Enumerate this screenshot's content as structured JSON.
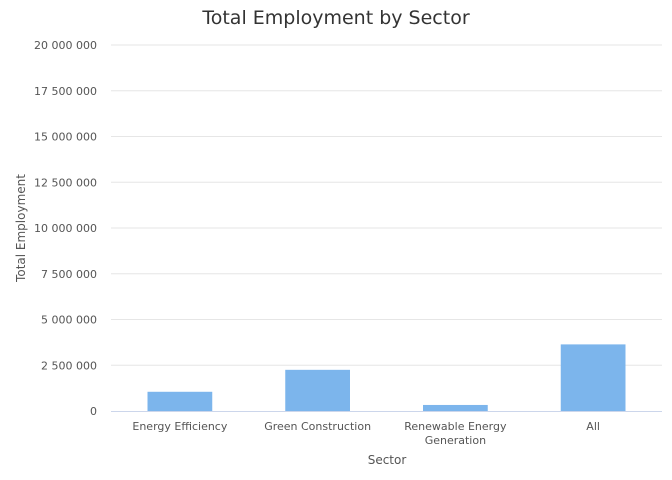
{
  "chart_data": {
    "type": "bar",
    "title": "Total Employment by Sector",
    "xlabel": "Sector",
    "ylabel": "Total Employment",
    "categories": [
      [
        "Energy Efficiency"
      ],
      [
        "Green Construction"
      ],
      [
        "Renewable Energy",
        "Generation"
      ],
      [
        "All"
      ]
    ],
    "values": [
      1050000,
      2250000,
      330000,
      3640000
    ],
    "ylim": [
      0,
      20000000
    ],
    "yticks": [
      0,
      2500000,
      5000000,
      7500000,
      10000000,
      12500000,
      15000000,
      17500000,
      20000000
    ],
    "ytick_labels": [
      "0",
      "2 500 000",
      "5 000 000",
      "7 500 000",
      "10 000 000",
      "12 500 000",
      "15 000 000",
      "17 500 000",
      "20 000 000"
    ],
    "grid": true,
    "legend": "none",
    "colors": {
      "bar": "#7cb5ec",
      "grid": "#e6e6e6",
      "axis": "#ccd6eb"
    }
  }
}
